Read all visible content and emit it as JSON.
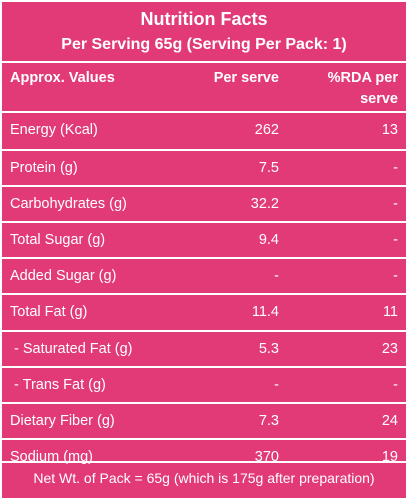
{
  "header": {
    "title": "Nutrition Facts",
    "subtitle": "Per Serving 65g (Serving Per Pack: 1)"
  },
  "columns": {
    "values": "Approx. Values",
    "per_serve": "Per serve",
    "rda_line1": "%RDA per",
    "rda_line2": "serve"
  },
  "rows": [
    {
      "name": "Energy (Kcal)",
      "per_serve": "262",
      "rda": "13"
    },
    {
      "name": "Protein (g)",
      "per_serve": "7.5",
      "rda": "-"
    },
    {
      "name": "Carbohydrates (g)",
      "per_serve": "32.2",
      "rda": "-"
    },
    {
      "name": "Total Sugar (g)",
      "per_serve": "9.4",
      "rda": "-"
    },
    {
      "name": "Added Sugar (g)",
      "per_serve": "-",
      "rda": "-"
    },
    {
      "name": "Total Fat (g)",
      "per_serve": "11.4",
      "rda": "11"
    },
    {
      "name": " - Saturated Fat (g)",
      "per_serve": "5.3",
      "rda": "23"
    },
    {
      "name": " - Trans Fat (g)",
      "per_serve": "-",
      "rda": "-"
    },
    {
      "name": "Dietary Fiber (g)",
      "per_serve": "7.3",
      "rda": "24"
    },
    {
      "name": "Sodium (mg)",
      "per_serve": "370",
      "rda": "19"
    }
  ],
  "footer": "Net Wt. of Pack = 65g (which is 175g after preparation)",
  "colors": {
    "background": "#e23a77",
    "text": "#ffffff",
    "rule": "#ffffff"
  }
}
